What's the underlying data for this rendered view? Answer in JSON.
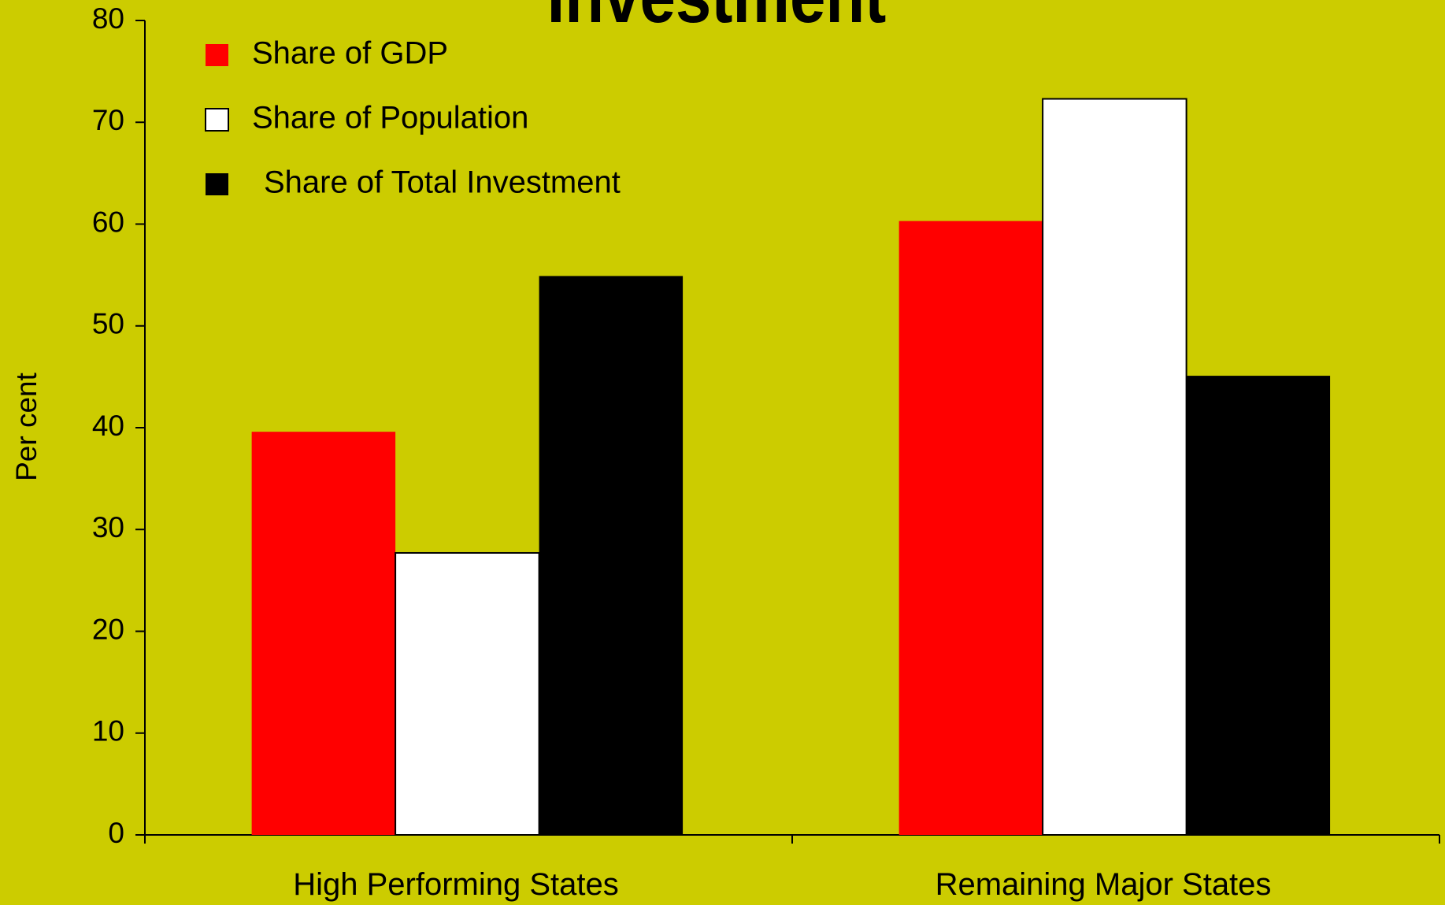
{
  "chart_data": {
    "type": "bar",
    "title": "Investment",
    "ylabel": "Per cent",
    "categories": [
      "High Performing States",
      "Remaining Major States"
    ],
    "series": [
      {
        "name": "Share of GDP",
        "color": "#ff0000",
        "values": [
          39.6,
          60.3
        ]
      },
      {
        "name": "Share of Population",
        "color": "#ffffff",
        "values": [
          27.7,
          72.3
        ]
      },
      {
        "name": "Share of Total Investment",
        "color": "#000000",
        "values": [
          54.9,
          45.1
        ]
      }
    ],
    "ylim": [
      0,
      80
    ],
    "yticks": [
      0,
      10,
      20,
      30,
      40,
      50,
      60,
      70,
      80
    ],
    "legend": "upper left"
  }
}
